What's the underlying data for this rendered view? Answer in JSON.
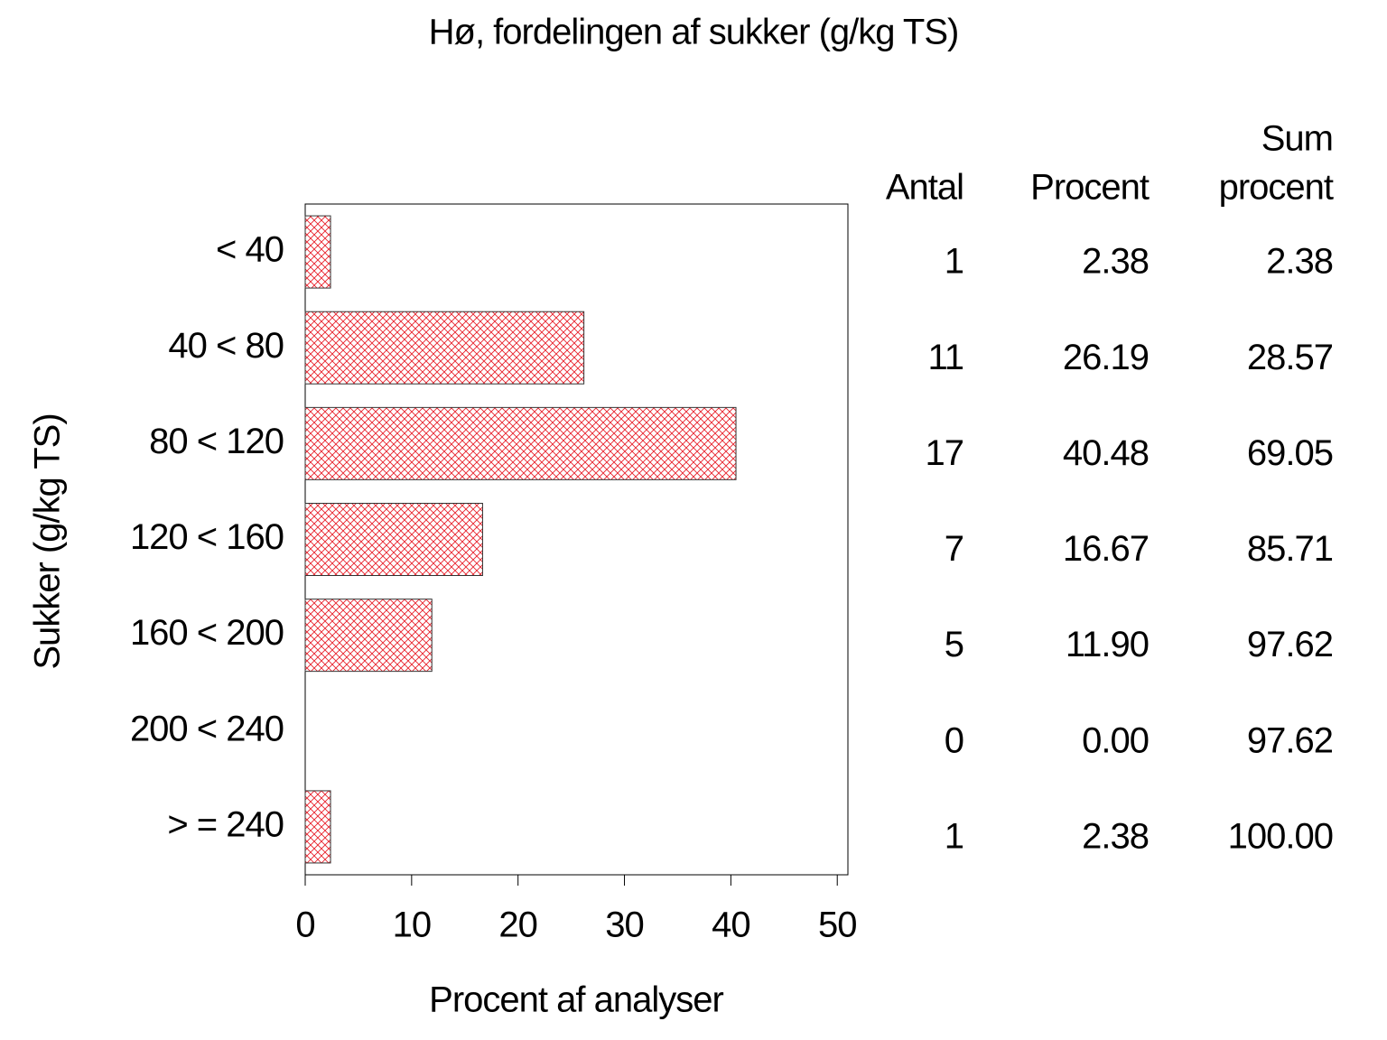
{
  "chart_data": {
    "type": "bar",
    "orientation": "horizontal",
    "title": "Hø, fordelingen af sukker (g/kg TS)",
    "x_label": "Procent af analyser",
    "y_label": "Sukker (g/kg TS)",
    "categories": [
      "< 40",
      "40 < 80",
      "80 < 120",
      "120 < 160",
      "160 < 200",
      "200 < 240",
      "> = 240"
    ],
    "values": [
      2.38,
      26.19,
      40.48,
      16.67,
      11.9,
      0,
      2.38
    ],
    "value_labels": [
      "2.38",
      "26.19",
      "40.48",
      "16.67",
      "11.90",
      "0.00",
      "2.38"
    ],
    "color": "#e8202a",
    "xlim": [
      0,
      51
    ],
    "xticks": [
      0,
      10,
      20,
      30,
      40,
      50
    ],
    "table_headers": [
      [
        "Antal"
      ],
      [
        "Procent"
      ],
      [
        "Sum",
        "procent"
      ]
    ],
    "counts": [
      1,
      11,
      17,
      7,
      5,
      0,
      1
    ],
    "cumulative": {
      "values": [
        2.38,
        28.57,
        69.05,
        85.71,
        97.62,
        97.62,
        100
      ],
      "value_labels": [
        "2.38",
        "28.57",
        "69.05",
        "85.71",
        "97.62",
        "97.62",
        "100.00"
      ]
    }
  }
}
